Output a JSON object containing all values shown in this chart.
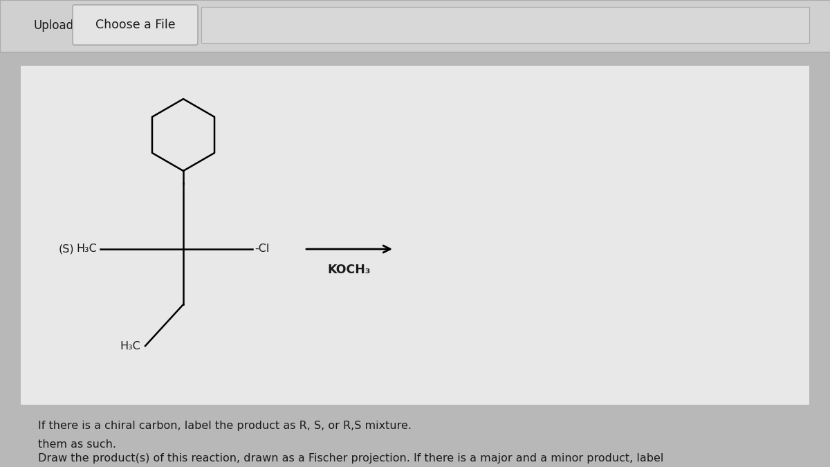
{
  "bg_color": "#b8b8b8",
  "panel_bg": "#e8e8e8",
  "text_color": "#1a1a1a",
  "line1": "Draw the product(s) of this reaction, drawn as a Fischer projection. If there is a major and a minor product, label",
  "line2": "them as such.",
  "line3": "If there is a chiral carbon, label the product as R, S, or R,S mixture.",
  "label_S": "(S)",
  "label_H3C_top": "H₃C",
  "label_H3C_left": "H₃C",
  "label_Cl": "-Cl",
  "label_reagent": "KOCH₃",
  "upload_text": "Upload",
  "choose_file_text": "Choose a File",
  "font_size_body": 11.5,
  "font_size_labels": 11.5,
  "font_size_upload": 12,
  "bottom_bar_color": "#d0d0d0",
  "btn_color": "#e4e4e4",
  "btn_border": "#aaaaaa",
  "input_bar_color": "#d8d8d8"
}
